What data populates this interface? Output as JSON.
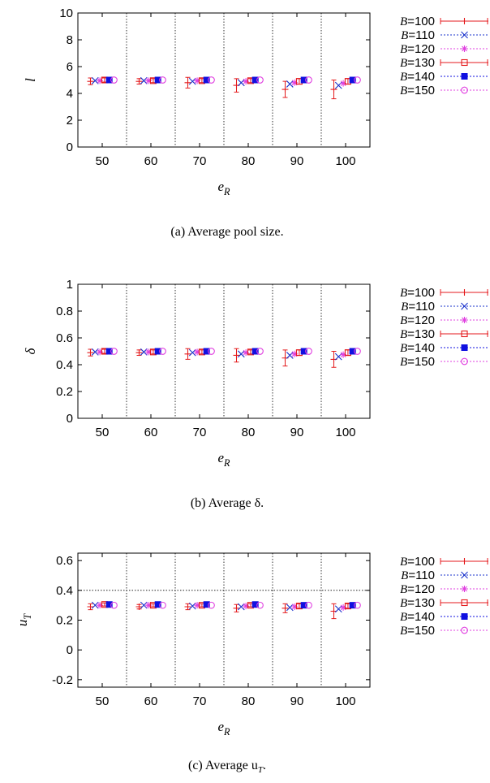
{
  "chart_data": [
    {
      "type": "scatter",
      "caption": "(a) Average pool size.",
      "ylabel": "l",
      "xlabel": "e",
      "xlabel_sub": "R",
      "ylim": [
        0,
        10
      ],
      "yticks": [
        0,
        2,
        4,
        6,
        8,
        10
      ],
      "ytick_labels": [
        "0",
        "2",
        "4",
        "6",
        "8",
        "10"
      ],
      "categories": [
        "50",
        "60",
        "70",
        "80",
        "90",
        "100"
      ],
      "grid": "vertical dotted separators between groups",
      "legend_position": "right",
      "series": [
        {
          "name": "B=100",
          "values": [
            4.9,
            4.9,
            4.8,
            4.6,
            4.3,
            4.3
          ],
          "errors": [
            0.25,
            0.2,
            0.4,
            0.5,
            0.6,
            0.7
          ]
        },
        {
          "name": "B=110",
          "values": [
            4.95,
            4.95,
            4.9,
            4.8,
            4.7,
            4.6
          ],
          "errors": [
            0,
            0,
            0,
            0,
            0,
            0
          ]
        },
        {
          "name": "B=120",
          "values": [
            4.95,
            4.95,
            4.95,
            4.9,
            4.8,
            4.75
          ],
          "errors": [
            0,
            0,
            0,
            0,
            0,
            0
          ]
        },
        {
          "name": "B=130",
          "values": [
            5.0,
            4.95,
            4.95,
            4.95,
            4.9,
            4.9
          ],
          "errors": [
            0.15,
            0.15,
            0.15,
            0.15,
            0.2,
            0.2
          ]
        },
        {
          "name": "B=140",
          "values": [
            5.0,
            5.0,
            5.0,
            5.0,
            5.0,
            5.0
          ],
          "errors": [
            0,
            0,
            0,
            0,
            0,
            0
          ]
        },
        {
          "name": "B=150",
          "values": [
            5.0,
            5.0,
            5.0,
            5.0,
            5.0,
            5.0
          ],
          "errors": [
            0,
            0,
            0,
            0,
            0,
            0
          ]
        }
      ]
    },
    {
      "type": "scatter",
      "caption": "(b) Average δ.",
      "ylabel": "δ",
      "xlabel": "e",
      "xlabel_sub": "R",
      "ylim": [
        0,
        1
      ],
      "yticks": [
        0,
        0.2,
        0.4,
        0.6,
        0.8,
        1
      ],
      "ytick_labels": [
        "0",
        "0.2",
        "0.4",
        "0.6",
        "0.8",
        "1"
      ],
      "categories": [
        "50",
        "60",
        "70",
        "80",
        "90",
        "100"
      ],
      "grid": "vertical dotted separators between groups",
      "legend_position": "right",
      "series": [
        {
          "name": "B=100",
          "values": [
            0.49,
            0.49,
            0.48,
            0.47,
            0.45,
            0.44
          ],
          "errors": [
            0.025,
            0.02,
            0.04,
            0.05,
            0.06,
            0.06
          ]
        },
        {
          "name": "B=110",
          "values": [
            0.495,
            0.495,
            0.49,
            0.48,
            0.47,
            0.46
          ],
          "errors": [
            0,
            0,
            0,
            0,
            0,
            0
          ]
        },
        {
          "name": "B=120",
          "values": [
            0.495,
            0.495,
            0.495,
            0.49,
            0.48,
            0.475
          ],
          "errors": [
            0,
            0,
            0,
            0,
            0,
            0
          ]
        },
        {
          "name": "B=130",
          "values": [
            0.5,
            0.495,
            0.495,
            0.495,
            0.49,
            0.49
          ],
          "errors": [
            0.015,
            0.015,
            0.015,
            0.015,
            0.02,
            0.02
          ]
        },
        {
          "name": "B=140",
          "values": [
            0.5,
            0.5,
            0.5,
            0.5,
            0.5,
            0.5
          ],
          "errors": [
            0,
            0,
            0,
            0,
            0,
            0
          ]
        },
        {
          "name": "B=150",
          "values": [
            0.5,
            0.5,
            0.5,
            0.5,
            0.5,
            0.5
          ],
          "errors": [
            0,
            0,
            0,
            0,
            0,
            0
          ]
        }
      ]
    },
    {
      "type": "scatter",
      "caption": "(c) Average u",
      "caption_sub": "T",
      "caption_tail": ".",
      "ylabel": "u",
      "ylabel_sub": "T",
      "xlabel": "e",
      "xlabel_sub": "R",
      "ylim": [
        -0.25,
        0.65
      ],
      "yticks": [
        -0.2,
        0,
        0.2,
        0.4,
        0.6
      ],
      "ytick_labels": [
        "-0.2",
        "0",
        "0.2",
        "0.4",
        "0.6"
      ],
      "categories": [
        "50",
        "60",
        "70",
        "80",
        "90",
        "100"
      ],
      "grid": "vertical dotted separators between groups, horizontal dotted line at 0.4",
      "legend_position": "right",
      "series": [
        {
          "name": "B=100",
          "values": [
            0.29,
            0.29,
            0.29,
            0.28,
            0.28,
            0.26
          ],
          "errors": [
            0.02,
            0.015,
            0.02,
            0.025,
            0.03,
            0.05
          ]
        },
        {
          "name": "B=110",
          "values": [
            0.3,
            0.3,
            0.295,
            0.29,
            0.285,
            0.275
          ],
          "errors": [
            0,
            0,
            0,
            0,
            0,
            0
          ]
        },
        {
          "name": "B=120",
          "values": [
            0.3,
            0.3,
            0.3,
            0.295,
            0.29,
            0.285
          ],
          "errors": [
            0,
            0,
            0,
            0,
            0,
            0
          ]
        },
        {
          "name": "B=130",
          "values": [
            0.305,
            0.3,
            0.3,
            0.3,
            0.295,
            0.295
          ],
          "errors": [
            0.01,
            0.01,
            0.01,
            0.01,
            0.015,
            0.015
          ]
        },
        {
          "name": "B=140",
          "values": [
            0.305,
            0.305,
            0.305,
            0.305,
            0.3,
            0.3
          ],
          "errors": [
            0,
            0,
            0,
            0,
            0,
            0
          ]
        },
        {
          "name": "B=150",
          "values": [
            0.3,
            0.3,
            0.3,
            0.3,
            0.3,
            0.3
          ],
          "errors": [
            0,
            0,
            0,
            0,
            0,
            0
          ]
        }
      ]
    }
  ],
  "series_styles": [
    {
      "color": "#e41a1c",
      "marker": "plus",
      "dashed": false
    },
    {
      "color": "#1a33cc",
      "marker": "cross",
      "dashed": true
    },
    {
      "color": "#e040e0",
      "marker": "star",
      "dashed": true
    },
    {
      "color": "#e41a1c",
      "marker": "square-open",
      "dashed": false
    },
    {
      "color": "#1010e0",
      "marker": "square-filled",
      "dashed": true
    },
    {
      "color": "#e040e0",
      "marker": "circle-open",
      "dashed": true
    }
  ]
}
